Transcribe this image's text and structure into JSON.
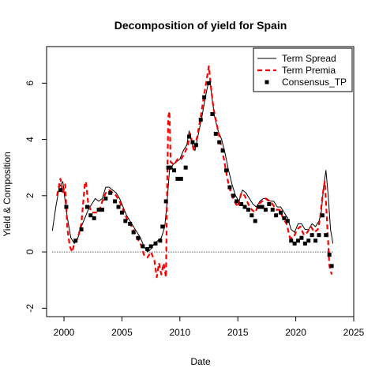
{
  "chart_data": {
    "type": "line",
    "title": "Decomposition of yield for Spain",
    "xlabel": "Date",
    "ylabel": "Yield & Composition",
    "xlim": [
      1998.5,
      2025.0
    ],
    "ylim": [
      -2.3,
      7.3
    ],
    "xticks": [
      2000,
      2005,
      2010,
      2015,
      2020,
      2025
    ],
    "yticks": [
      -2,
      0,
      2,
      4,
      6
    ],
    "reference_line": {
      "y": 0,
      "style": "dotted"
    },
    "grid": false,
    "legend_position": "top-right",
    "series": [
      {
        "name": "Term Spread",
        "style": "line",
        "color": "#000000",
        "points": [
          [
            1999.0,
            0.75
          ],
          [
            1999.3,
            1.6
          ],
          [
            1999.6,
            2.3
          ],
          [
            1999.9,
            2.5
          ],
          [
            2000.1,
            1.8
          ],
          [
            2000.3,
            1.2
          ],
          [
            2000.6,
            0.5
          ],
          [
            2000.9,
            0.3
          ],
          [
            2001.2,
            0.5
          ],
          [
            2001.5,
            0.9
          ],
          [
            2001.8,
            1.2
          ],
          [
            2002.1,
            1.5
          ],
          [
            2002.4,
            1.7
          ],
          [
            2002.7,
            1.9
          ],
          [
            2003.0,
            1.8
          ],
          [
            2003.3,
            1.9
          ],
          [
            2003.6,
            2.3
          ],
          [
            2003.9,
            2.3
          ],
          [
            2004.2,
            2.2
          ],
          [
            2004.5,
            2.1
          ],
          [
            2004.8,
            1.9
          ],
          [
            2005.1,
            1.6
          ],
          [
            2005.4,
            1.3
          ],
          [
            2005.7,
            1.1
          ],
          [
            2006.0,
            0.9
          ],
          [
            2006.3,
            0.7
          ],
          [
            2006.6,
            0.5
          ],
          [
            2006.9,
            0.2
          ],
          [
            2007.2,
            0.0
          ],
          [
            2007.5,
            0.1
          ],
          [
            2007.8,
            0.3
          ],
          [
            2008.1,
            0.4
          ],
          [
            2008.4,
            0.5
          ],
          [
            2008.7,
            0.9
          ],
          [
            2008.9,
            1.8
          ],
          [
            2009.1,
            2.9
          ],
          [
            2009.4,
            3.1
          ],
          [
            2009.7,
            3.2
          ],
          [
            2010.0,
            3.3
          ],
          [
            2010.3,
            3.6
          ],
          [
            2010.6,
            3.8
          ],
          [
            2010.8,
            4.3
          ],
          [
            2011.0,
            3.9
          ],
          [
            2011.3,
            3.6
          ],
          [
            2011.6,
            4.2
          ],
          [
            2011.9,
            4.8
          ],
          [
            2012.2,
            5.5
          ],
          [
            2012.4,
            5.9
          ],
          [
            2012.6,
            6.1
          ],
          [
            2012.8,
            5.4
          ],
          [
            2013.0,
            4.8
          ],
          [
            2013.3,
            4.3
          ],
          [
            2013.6,
            4.0
          ],
          [
            2013.9,
            3.5
          ],
          [
            2014.2,
            2.9
          ],
          [
            2014.5,
            2.4
          ],
          [
            2014.8,
            2.0
          ],
          [
            2015.1,
            1.8
          ],
          [
            2015.4,
            2.2
          ],
          [
            2015.7,
            2.1
          ],
          [
            2016.0,
            1.9
          ],
          [
            2016.3,
            1.7
          ],
          [
            2016.6,
            1.6
          ],
          [
            2016.9,
            1.8
          ],
          [
            2017.2,
            1.9
          ],
          [
            2017.5,
            1.9
          ],
          [
            2017.8,
            1.8
          ],
          [
            2018.1,
            1.8
          ],
          [
            2018.4,
            1.6
          ],
          [
            2018.7,
            1.6
          ],
          [
            2019.0,
            1.4
          ],
          [
            2019.3,
            1.2
          ],
          [
            2019.6,
            0.8
          ],
          [
            2019.9,
            0.7
          ],
          [
            2020.2,
            1.0
          ],
          [
            2020.5,
            1.0
          ],
          [
            2020.8,
            0.8
          ],
          [
            2021.1,
            0.8
          ],
          [
            2021.4,
            1.0
          ],
          [
            2021.7,
            0.9
          ],
          [
            2022.0,
            1.1
          ],
          [
            2022.2,
            1.4
          ],
          [
            2022.4,
            2.3
          ],
          [
            2022.6,
            2.9
          ],
          [
            2022.8,
            2.0
          ],
          [
            2023.0,
            0.8
          ],
          [
            2023.2,
            0.3
          ]
        ]
      },
      {
        "name": "Term Premia",
        "style": "dashed",
        "color": "#ff0000",
        "points": [
          [
            1999.4,
            2.0
          ],
          [
            1999.7,
            2.6
          ],
          [
            1999.9,
            2.1
          ],
          [
            2000.1,
            2.4
          ],
          [
            2000.3,
            0.8
          ],
          [
            2000.5,
            0.2
          ],
          [
            2000.7,
            0.0
          ],
          [
            2000.9,
            0.3
          ],
          [
            2001.2,
            0.5
          ],
          [
            2001.5,
            1.0
          ],
          [
            2001.8,
            2.4
          ],
          [
            2001.9,
            2.5
          ],
          [
            2002.1,
            1.7
          ],
          [
            2002.4,
            1.4
          ],
          [
            2002.7,
            1.4
          ],
          [
            2003.0,
            1.4
          ],
          [
            2003.3,
            1.8
          ],
          [
            2003.6,
            2.1
          ],
          [
            2003.9,
            2.2
          ],
          [
            2004.2,
            2.1
          ],
          [
            2004.5,
            2.0
          ],
          [
            2004.8,
            1.8
          ],
          [
            2005.1,
            1.5
          ],
          [
            2005.4,
            1.2
          ],
          [
            2005.7,
            1.0
          ],
          [
            2006.0,
            0.8
          ],
          [
            2006.3,
            0.5
          ],
          [
            2006.6,
            0.3
          ],
          [
            2006.9,
            -0.1
          ],
          [
            2007.2,
            -0.2
          ],
          [
            2007.5,
            0.0
          ],
          [
            2007.8,
            -0.3
          ],
          [
            2008.0,
            -0.9
          ],
          [
            2008.2,
            -0.4
          ],
          [
            2008.4,
            -0.8
          ],
          [
            2008.6,
            -0.4
          ],
          [
            2008.8,
            -0.9
          ],
          [
            2008.9,
            2.3
          ],
          [
            2009.0,
            4.8
          ],
          [
            2009.1,
            5.0
          ],
          [
            2009.2,
            3.2
          ],
          [
            2009.5,
            3.1
          ],
          [
            2009.8,
            3.3
          ],
          [
            2010.1,
            3.3
          ],
          [
            2010.4,
            3.5
          ],
          [
            2010.7,
            3.8
          ],
          [
            2010.9,
            4.2
          ],
          [
            2011.2,
            3.6
          ],
          [
            2011.5,
            4.1
          ],
          [
            2011.8,
            4.8
          ],
          [
            2012.1,
            5.6
          ],
          [
            2012.3,
            6.1
          ],
          [
            2012.5,
            6.6
          ],
          [
            2012.7,
            5.8
          ],
          [
            2012.9,
            5.1
          ],
          [
            2013.2,
            4.5
          ],
          [
            2013.5,
            3.9
          ],
          [
            2013.8,
            3.3
          ],
          [
            2014.1,
            2.6
          ],
          [
            2014.4,
            2.1
          ],
          [
            2014.7,
            1.8
          ],
          [
            2015.0,
            1.6
          ],
          [
            2015.3,
            2.1
          ],
          [
            2015.6,
            2.0
          ],
          [
            2015.9,
            1.7
          ],
          [
            2016.2,
            1.5
          ],
          [
            2016.5,
            1.4
          ],
          [
            2016.8,
            1.7
          ],
          [
            2017.1,
            1.8
          ],
          [
            2017.4,
            1.9
          ],
          [
            2017.7,
            1.8
          ],
          [
            2018.0,
            1.7
          ],
          [
            2018.3,
            1.5
          ],
          [
            2018.6,
            1.5
          ],
          [
            2018.9,
            1.2
          ],
          [
            2019.2,
            1.0
          ],
          [
            2019.5,
            0.5
          ],
          [
            2019.8,
            0.5
          ],
          [
            2020.1,
            0.8
          ],
          [
            2020.4,
            0.9
          ],
          [
            2020.7,
            0.6
          ],
          [
            2021.0,
            0.7
          ],
          [
            2021.3,
            0.9
          ],
          [
            2021.6,
            0.7
          ],
          [
            2021.9,
            0.8
          ],
          [
            2022.1,
            1.2
          ],
          [
            2022.3,
            2.0
          ],
          [
            2022.5,
            2.5
          ],
          [
            2022.7,
            1.1
          ],
          [
            2022.9,
            -0.5
          ],
          [
            2023.1,
            -0.8
          ]
        ]
      },
      {
        "name": "Consensus_TP",
        "style": "points",
        "color": "#000000",
        "points": [
          [
            1999.7,
            2.2
          ],
          [
            2000.2,
            1.6
          ],
          [
            2001.0,
            0.4
          ],
          [
            2001.5,
            0.8
          ],
          [
            2002.0,
            1.6
          ],
          [
            2002.3,
            1.3
          ],
          [
            2002.6,
            1.2
          ],
          [
            2003.0,
            1.5
          ],
          [
            2003.3,
            1.5
          ],
          [
            2003.6,
            1.9
          ],
          [
            2004.0,
            2.1
          ],
          [
            2004.4,
            1.8
          ],
          [
            2004.7,
            1.6
          ],
          [
            2005.0,
            1.4
          ],
          [
            2005.3,
            1.1
          ],
          [
            2005.7,
            1.0
          ],
          [
            2006.0,
            0.7
          ],
          [
            2006.4,
            0.5
          ],
          [
            2006.8,
            0.2
          ],
          [
            2007.2,
            0.1
          ],
          [
            2007.5,
            0.2
          ],
          [
            2007.9,
            0.3
          ],
          [
            2008.3,
            0.4
          ],
          [
            2008.5,
            0.9
          ],
          [
            2008.8,
            1.8
          ],
          [
            2009.0,
            3.0
          ],
          [
            2009.2,
            3.0
          ],
          [
            2009.5,
            2.9
          ],
          [
            2009.8,
            2.6
          ],
          [
            2010.1,
            2.6
          ],
          [
            2010.5,
            3.0
          ],
          [
            2010.8,
            4.1
          ],
          [
            2011.1,
            3.9
          ],
          [
            2011.4,
            3.8
          ],
          [
            2011.8,
            4.7
          ],
          [
            2012.1,
            5.5
          ],
          [
            2012.5,
            6.0
          ],
          [
            2012.8,
            4.9
          ],
          [
            2013.1,
            4.2
          ],
          [
            2013.4,
            3.9
          ],
          [
            2013.7,
            3.6
          ],
          [
            2014.0,
            2.9
          ],
          [
            2014.3,
            2.3
          ],
          [
            2014.6,
            2.0
          ],
          [
            2014.9,
            1.8
          ],
          [
            2015.3,
            1.7
          ],
          [
            2015.6,
            1.6
          ],
          [
            2015.9,
            1.5
          ],
          [
            2016.2,
            1.3
          ],
          [
            2016.5,
            1.1
          ],
          [
            2016.8,
            1.6
          ],
          [
            2017.1,
            1.6
          ],
          [
            2017.4,
            1.5
          ],
          [
            2017.7,
            1.7
          ],
          [
            2018.0,
            1.5
          ],
          [
            2018.3,
            1.3
          ],
          [
            2018.7,
            1.4
          ],
          [
            2019.0,
            1.2
          ],
          [
            2019.3,
            1.1
          ],
          [
            2019.6,
            0.4
          ],
          [
            2019.9,
            0.3
          ],
          [
            2020.2,
            0.4
          ],
          [
            2020.5,
            0.5
          ],
          [
            2020.8,
            0.3
          ],
          [
            2021.1,
            0.4
          ],
          [
            2021.4,
            0.6
          ],
          [
            2021.7,
            0.4
          ],
          [
            2022.0,
            0.6
          ],
          [
            2022.3,
            1.3
          ],
          [
            2022.6,
            0.6
          ],
          [
            2022.9,
            -0.1
          ],
          [
            2023.1,
            -0.5
          ]
        ]
      }
    ]
  }
}
